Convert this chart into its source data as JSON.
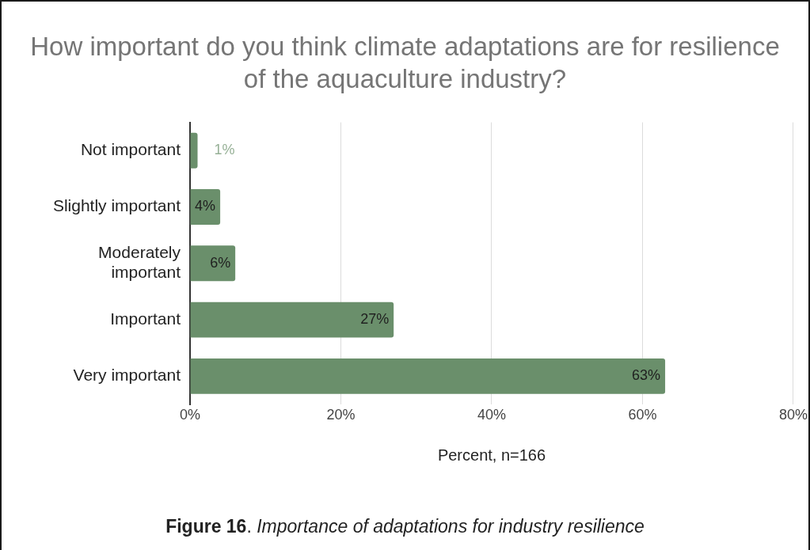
{
  "chart_data": {
    "type": "bar",
    "orientation": "horizontal",
    "title": "How important do you think climate adaptations are for resilience of the aquaculture industry?",
    "xlabel": "Percent, n=166",
    "categories": [
      "Not important",
      "Slightly important",
      "Moderately important",
      "Important",
      "Very important"
    ],
    "values": [
      1,
      4,
      6,
      27,
      63
    ],
    "value_labels": [
      "1%",
      "4%",
      "6%",
      "27%",
      "63%"
    ],
    "color": "#6a8f6b",
    "xlim": [
      0,
      80
    ],
    "xticks": [
      {
        "value": 0,
        "label": "0%"
      },
      {
        "value": 20,
        "label": "20%"
      },
      {
        "value": 40,
        "label": "40%"
      },
      {
        "value": 60,
        "label": "60%"
      },
      {
        "value": 80,
        "label": "80%"
      }
    ],
    "grid": "x",
    "annotations": [
      "Figure 16. Importance of adaptations for industry resilience"
    ]
  }
}
